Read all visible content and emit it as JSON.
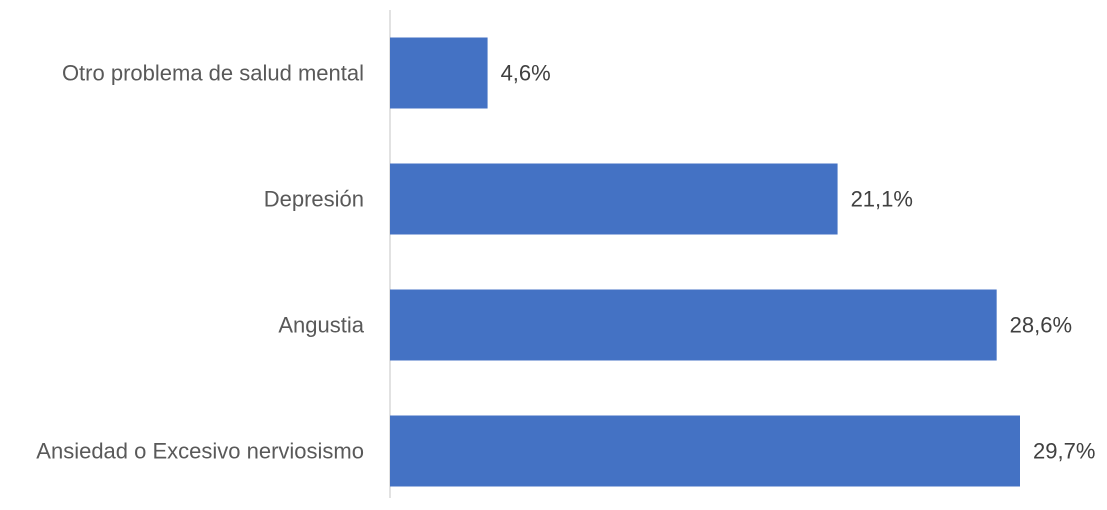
{
  "chart_data": {
    "type": "bar",
    "orientation": "horizontal",
    "categories": [
      "Otro problema de salud mental",
      "Depresión",
      "Angustia",
      "Ansiedad o Excesivo nerviosismo"
    ],
    "values": [
      4.6,
      21.1,
      28.6,
      29.7
    ],
    "value_labels": [
      "4,6%",
      "21,1%",
      "28,6%",
      "29,7%"
    ],
    "unit": "%",
    "title": "",
    "xlabel": "",
    "ylabel": "",
    "xlim": [
      0,
      29.7
    ],
    "grid": false,
    "legend": "none",
    "bar_color": "#4472C4",
    "axis_color": "#D9D9D9",
    "label_color": "#595959",
    "value_label_color": "#404040"
  }
}
